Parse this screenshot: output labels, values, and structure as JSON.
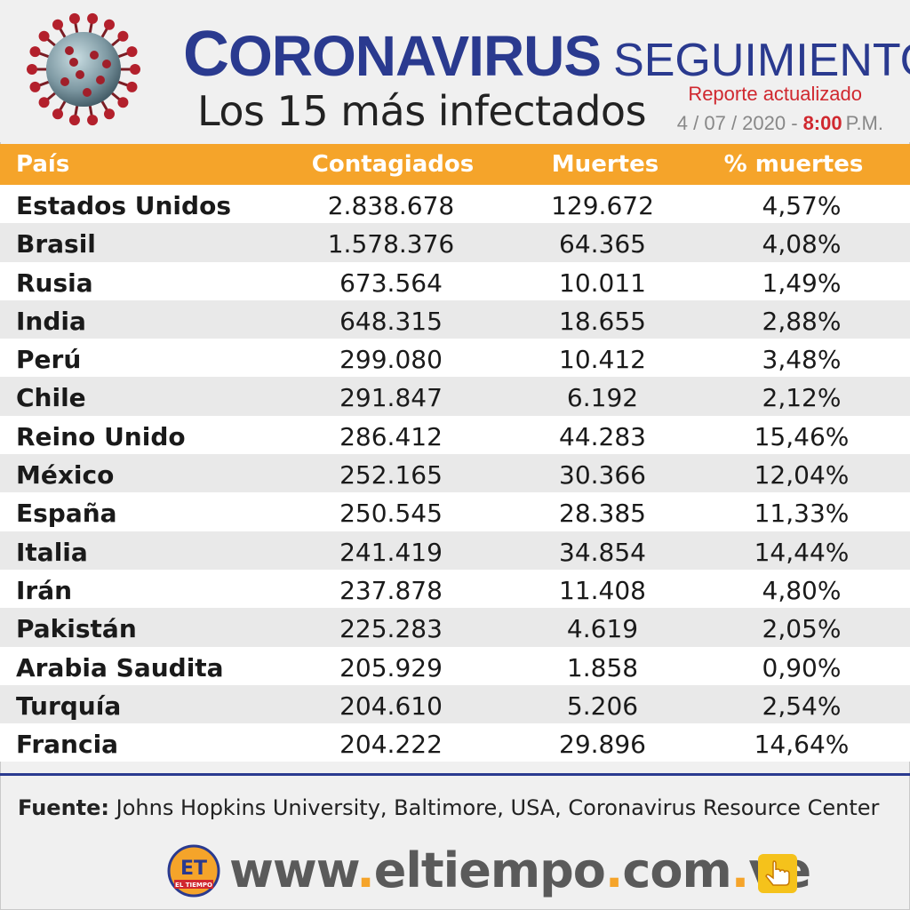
{
  "header": {
    "title_main": "Coronavirus",
    "title_second": "SEGUIMIENTO",
    "subtitle": "Los 15 más infectados",
    "report_label": "Reporte actualizado",
    "report_date": "4 / 07 / 2020 -",
    "report_time": "8:00",
    "report_ampm": "P.M."
  },
  "table": {
    "columns": [
      "País",
      "Contagiados",
      "Muertes",
      "% muertes"
    ],
    "rows": [
      [
        "Estados Unidos",
        "2.838.678",
        "129.672",
        "4,57%"
      ],
      [
        "Brasil",
        "1.578.376",
        "64.365",
        "4,08%"
      ],
      [
        "Rusia",
        "673.564",
        "10.011",
        "1,49%"
      ],
      [
        "India",
        "648.315",
        "18.655",
        "2,88%"
      ],
      [
        "Perú",
        "299.080",
        "10.412",
        "3,48%"
      ],
      [
        "Chile",
        "291.847",
        "6.192",
        "2,12%"
      ],
      [
        "Reino Unido",
        "286.412",
        "44.283",
        "15,46%"
      ],
      [
        "México",
        "252.165",
        "30.366",
        "12,04%"
      ],
      [
        "España",
        "250.545",
        "28.385",
        "11,33%"
      ],
      [
        "Italia",
        "241.419",
        "34.854",
        "14,44%"
      ],
      [
        "Irán",
        "237.878",
        "11.408",
        "4,80%"
      ],
      [
        "Pakistán",
        "225.283",
        "4.619",
        "2,05%"
      ],
      [
        "Arabia Saudita",
        "205.929",
        "1.858",
        "0,90%"
      ],
      [
        "Turquía",
        "204.610",
        "5.206",
        "2,54%"
      ],
      [
        "Francia",
        "204.222",
        "29.896",
        "14,64%"
      ]
    ]
  },
  "source": {
    "label": "Fuente:",
    "text": "Johns Hopkins University, Baltimore, USA, Coronavirus Resource Center"
  },
  "footer": {
    "url_parts": [
      "www",
      ".",
      "eltiempo",
      ".",
      "com",
      ".",
      "ve"
    ],
    "logo_initials": "ET",
    "logo_caption": "EL TIEMPO"
  },
  "colors": {
    "title_blue": "#2a3a8f",
    "header_orange": "#f5a42a",
    "accent_red": "#d0282f",
    "row_alt_gray": "#e9e9e9"
  },
  "icons": [
    "coronavirus-icon",
    "eltiempo-logo",
    "hand-pointer-icon"
  ]
}
